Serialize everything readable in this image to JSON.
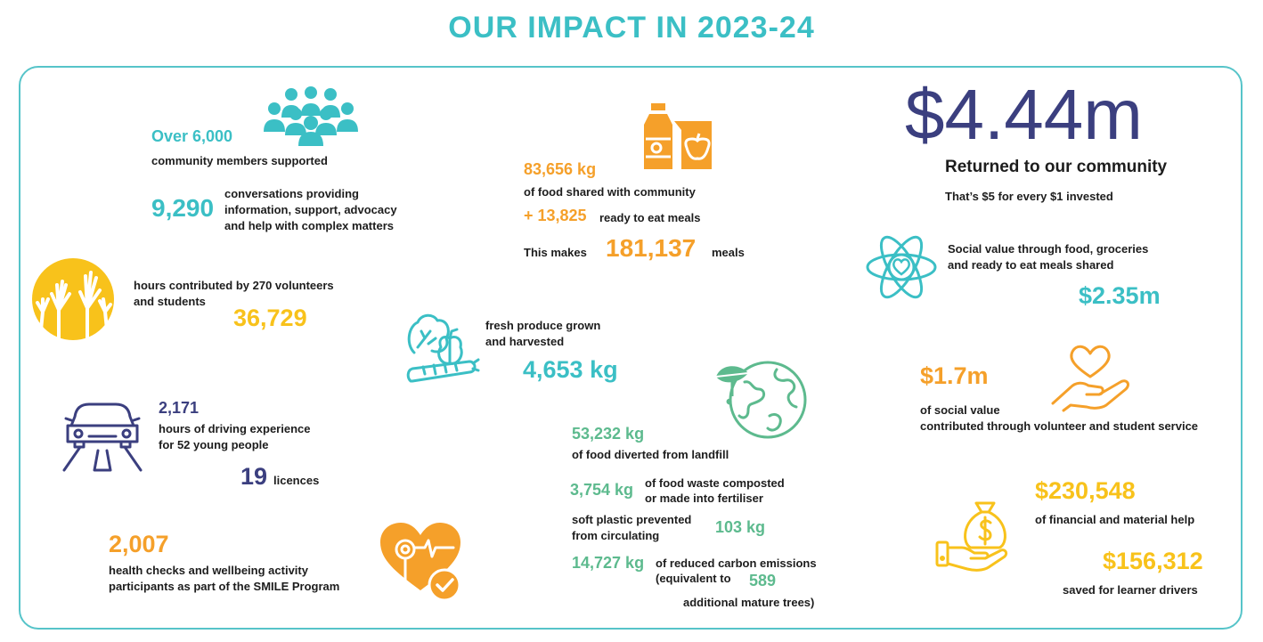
{
  "title": "OUR IMPACT IN 2023-24",
  "community": {
    "value": "Over 6,000",
    "label": "community members supported"
  },
  "conversations": {
    "value": "9,290",
    "label_line1": "conversations providing",
    "label_line2": "information, support, advocacy",
    "label_line3": "and help with complex matters"
  },
  "volunteers": {
    "label_line1": "hours contributed by 270 volunteers",
    "label_line2": "and students",
    "value": "36,729"
  },
  "driving": {
    "value": "2,171",
    "label_line1": "hours of driving experience",
    "label_line2": "for 52 young people",
    "licences_value": "19",
    "licences_label": "licences"
  },
  "health": {
    "value": "2,007",
    "label_line1": "health checks and wellbeing activity",
    "label_line2": "participants as part of the SMILE Program"
  },
  "food": {
    "value": "83,656 kg",
    "label": "of food shared with community",
    "meals_value": "+ 13,825",
    "meals_label": "ready to eat meals",
    "makes_label": "This makes",
    "total_meals": "181,137",
    "total_label": "meals"
  },
  "produce": {
    "label_line1": "fresh produce grown",
    "label_line2": "and harvested",
    "value": "4,653 kg"
  },
  "landfill": {
    "value": "53,232 kg",
    "label": "of food diverted from landfill"
  },
  "compost": {
    "value": "3,754 kg",
    "label_line1": "of food waste composted",
    "label_line2": "or made into fertiliser"
  },
  "plastic": {
    "label_line1": "soft plastic prevented",
    "label_line2": "from circulating",
    "value": "103 kg"
  },
  "carbon": {
    "value": "14,727 kg",
    "label_line1": "of reduced carbon emissions",
    "label_line2": "(equivalent to",
    "trees_value": "589",
    "label_line3": "additional mature trees)"
  },
  "returned": {
    "value": "$4.44m",
    "label": "Returned to our community",
    "sub": "That’s $5 for every $1 invested"
  },
  "social_food": {
    "label_line1": "Social value through food, groceries",
    "label_line2": "and ready to eat meals shared",
    "value": "$2.35m"
  },
  "social_volunteer": {
    "value": "$1.7m",
    "label_line1": "of social value",
    "label_line2": "contributed through volunteer and student service"
  },
  "financial": {
    "value": "$230,548",
    "label": "of financial and material help"
  },
  "learner": {
    "value": "$156,312",
    "label": "saved for learner drivers"
  },
  "icons": [
    "people-group-icon",
    "raised-hands-icon",
    "car-road-icon",
    "heart-health-icon",
    "food-groceries-icon",
    "vegetables-icon",
    "earth-leaf-icon",
    "atom-heart-icon",
    "hand-heart-icon",
    "money-bag-hand-icon"
  ],
  "colors": {
    "teal": "#3bbfc5",
    "orange": "#f5a02a",
    "yellow": "#f8c21b",
    "navy": "#3b3f7f",
    "green": "#5dba8e"
  }
}
